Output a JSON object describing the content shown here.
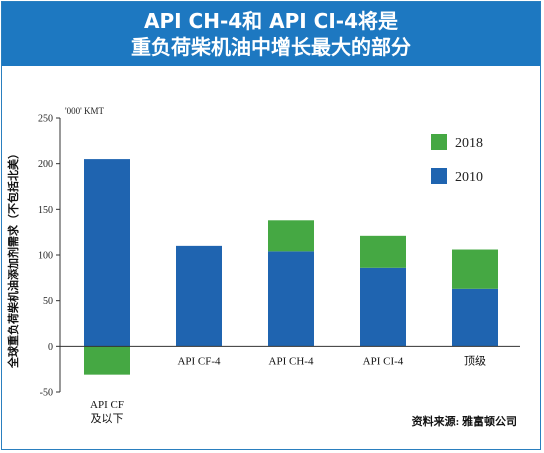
{
  "header": {
    "title_line1": "API CH-4和 API CI-4将是",
    "title_line2": "重负荷柴机油中增长最大的部分"
  },
  "source": "资料来源: 雅富顿公司",
  "colors": {
    "header_bg": "#1d78c1",
    "series_2010": "#1f64b0",
    "series_2018": "#45a843"
  },
  "chart_data": {
    "type": "bar",
    "stacked": true,
    "title": "",
    "unit_label": "'000' KMT",
    "ylabel": "全球重负荷柴机油添加剂需求（不包括北美）",
    "categories": [
      "API CF\n及以下",
      "API CF-4",
      "API CH-4",
      "API CI-4",
      "顶级"
    ],
    "category_lines": [
      [
        "API CF",
        "及以下"
      ],
      [
        "API CF-4"
      ],
      [
        "API CH-4"
      ],
      [
        "API CI-4"
      ],
      [
        "顶级"
      ]
    ],
    "ylim": [
      -50,
      250
    ],
    "yticks": [
      -50,
      0,
      50,
      100,
      150,
      200,
      250
    ],
    "grid": false,
    "legend_position": "top-right",
    "series": [
      {
        "name": "2010",
        "color": "#1f64b0",
        "values": [
          205,
          110,
          104,
          86,
          63
        ]
      },
      {
        "name": "2018",
        "color": "#45a843",
        "values": [
          -31,
          0,
          34,
          35,
          43
        ]
      }
    ]
  }
}
